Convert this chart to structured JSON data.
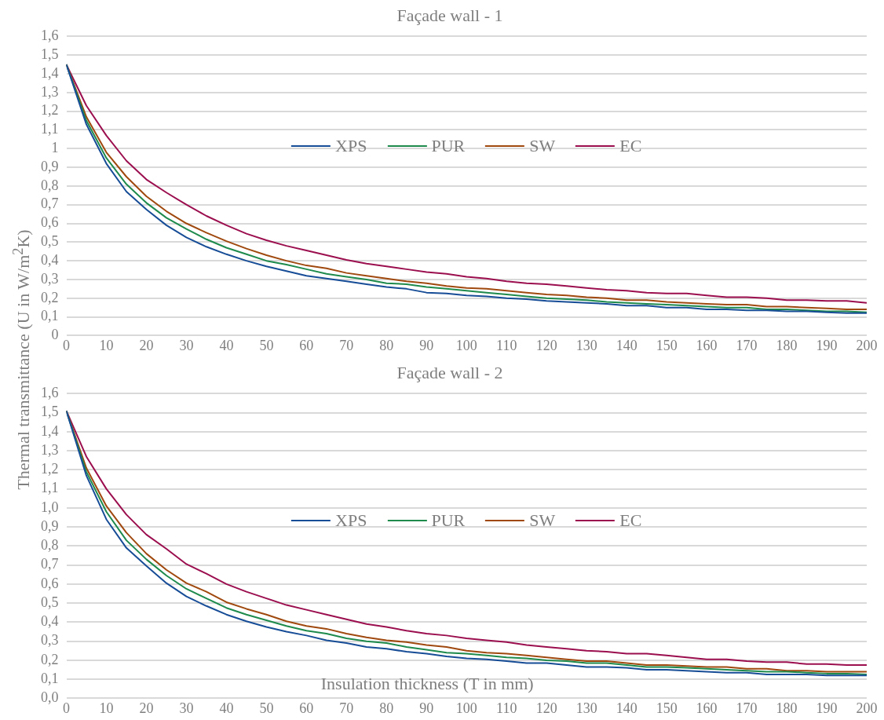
{
  "chart_data": [
    {
      "type": "line",
      "title": "Façade wall - 1",
      "ylabel": "Thermal transmittance (U in W/m$^{2}$K)",
      "legend": "center",
      "grid": "y",
      "marker": "none",
      "x": [
        0,
        5,
        10,
        15,
        20,
        25,
        30,
        35,
        40,
        45,
        50,
        55,
        60,
        65,
        70,
        75,
        80,
        85,
        90,
        95,
        100,
        105,
        110,
        115,
        120,
        125,
        130,
        135,
        140,
        145,
        150,
        155,
        160,
        165,
        170,
        175,
        180,
        185,
        190,
        195,
        200
      ],
      "xlim": [
        0,
        200
      ],
      "xticks": [
        0,
        10,
        20,
        30,
        40,
        50,
        60,
        70,
        80,
        90,
        100,
        110,
        120,
        130,
        140,
        150,
        160,
        170,
        180,
        190,
        200
      ],
      "ylim": [
        0,
        1.6
      ],
      "yticks": [
        {
          "value": 0,
          "label": "0"
        },
        {
          "value": 0.1,
          "label": "0,1"
        },
        {
          "value": 0.2,
          "label": "0,2"
        },
        {
          "value": 0.3,
          "label": "0,3"
        },
        {
          "value": 0.4,
          "label": "0,4"
        },
        {
          "value": 0.5,
          "label": "0,5"
        },
        {
          "value": 0.6,
          "label": "0,6"
        },
        {
          "value": 0.7,
          "label": "0,7"
        },
        {
          "value": 0.8,
          "label": "0,8"
        },
        {
          "value": 0.9,
          "label": "0,9"
        },
        {
          "value": 1,
          "label": "1"
        },
        {
          "value": 1.1,
          "label": "1,1"
        },
        {
          "value": 1.2,
          "label": "1,2"
        },
        {
          "value": 1.3,
          "label": "1,3"
        },
        {
          "value": 1.4,
          "label": "1,4"
        },
        {
          "value": 1.5,
          "label": "1,5"
        },
        {
          "value": 1.6,
          "label": "1,6"
        }
      ],
      "series": [
        {
          "name": "XPS",
          "color": "#174d96",
          "values": [
            1.45,
            1.13,
            0.92,
            0.77,
            0.675,
            0.59,
            0.525,
            0.475,
            0.435,
            0.4,
            0.37,
            0.345,
            0.32,
            0.305,
            0.29,
            0.275,
            0.26,
            0.25,
            0.23,
            0.225,
            0.215,
            0.21,
            0.2,
            0.195,
            0.185,
            0.18,
            0.175,
            0.17,
            0.16,
            0.16,
            0.15,
            0.15,
            0.14,
            0.14,
            0.135,
            0.135,
            0.13,
            0.13,
            0.125,
            0.12,
            0.12
          ]
        },
        {
          "name": "PUR",
          "color": "#1e8a4c",
          "values": [
            1.45,
            1.15,
            0.95,
            0.81,
            0.71,
            0.63,
            0.57,
            0.515,
            0.47,
            0.435,
            0.4,
            0.38,
            0.355,
            0.33,
            0.315,
            0.3,
            0.28,
            0.275,
            0.26,
            0.25,
            0.24,
            0.23,
            0.22,
            0.21,
            0.2,
            0.195,
            0.19,
            0.18,
            0.175,
            0.17,
            0.165,
            0.16,
            0.155,
            0.15,
            0.15,
            0.14,
            0.14,
            0.135,
            0.13,
            0.13,
            0.125
          ]
        },
        {
          "name": "SW",
          "color": "#a0490f",
          "values": [
            1.45,
            1.17,
            0.98,
            0.85,
            0.745,
            0.665,
            0.6,
            0.55,
            0.505,
            0.465,
            0.43,
            0.4,
            0.375,
            0.36,
            0.335,
            0.32,
            0.305,
            0.29,
            0.28,
            0.265,
            0.255,
            0.25,
            0.24,
            0.23,
            0.22,
            0.215,
            0.205,
            0.2,
            0.19,
            0.19,
            0.18,
            0.175,
            0.17,
            0.165,
            0.165,
            0.155,
            0.155,
            0.15,
            0.145,
            0.14,
            0.14
          ]
        },
        {
          "name": "EC",
          "color": "#9b0f4f",
          "values": [
            1.45,
            1.23,
            1.07,
            0.935,
            0.835,
            0.765,
            0.7,
            0.64,
            0.59,
            0.545,
            0.51,
            0.48,
            0.455,
            0.43,
            0.405,
            0.385,
            0.37,
            0.355,
            0.34,
            0.33,
            0.315,
            0.305,
            0.29,
            0.28,
            0.275,
            0.265,
            0.255,
            0.245,
            0.24,
            0.23,
            0.225,
            0.225,
            0.215,
            0.205,
            0.205,
            0.2,
            0.19,
            0.19,
            0.185,
            0.185,
            0.175
          ]
        }
      ]
    },
    {
      "type": "line",
      "title": "Façade wall - 2",
      "xlabel": "Insulation thickness (T in mm)",
      "legend": "center",
      "grid": "y",
      "marker": "none",
      "x": [
        0,
        5,
        10,
        15,
        20,
        25,
        30,
        35,
        40,
        45,
        50,
        55,
        60,
        65,
        70,
        75,
        80,
        85,
        90,
        95,
        100,
        105,
        110,
        115,
        120,
        125,
        130,
        135,
        140,
        145,
        150,
        155,
        160,
        165,
        170,
        175,
        180,
        185,
        190,
        195,
        200
      ],
      "xlim": [
        0,
        200
      ],
      "xticks": [
        0,
        10,
        20,
        30,
        40,
        50,
        60,
        70,
        80,
        90,
        100,
        110,
        120,
        130,
        140,
        150,
        160,
        170,
        180,
        190,
        200
      ],
      "ylim": [
        0,
        1.6
      ],
      "yticks": [
        {
          "value": 0,
          "label": "0,0"
        },
        {
          "value": 0.1,
          "label": "0,1"
        },
        {
          "value": 0.2,
          "label": "0,2"
        },
        {
          "value": 0.3,
          "label": "0,3"
        },
        {
          "value": 0.4,
          "label": "0,4"
        },
        {
          "value": 0.5,
          "label": "0,5"
        },
        {
          "value": 0.6,
          "label": "0,6"
        },
        {
          "value": 0.7,
          "label": "0,7"
        },
        {
          "value": 0.8,
          "label": "0,8"
        },
        {
          "value": 0.9,
          "label": "0,9"
        },
        {
          "value": 1,
          "label": "1,0"
        },
        {
          "value": 1.1,
          "label": "1,1"
        },
        {
          "value": 1.2,
          "label": "1,2"
        },
        {
          "value": 1.3,
          "label": "1,3"
        },
        {
          "value": 1.4,
          "label": "1,4"
        },
        {
          "value": 1.5,
          "label": "1,5"
        },
        {
          "value": 1.6,
          "label": "1,6"
        }
      ],
      "series": [
        {
          "name": "XPS",
          "color": "#174d96",
          "values": [
            1.51,
            1.17,
            0.94,
            0.79,
            0.695,
            0.605,
            0.535,
            0.485,
            0.44,
            0.405,
            0.375,
            0.35,
            0.33,
            0.305,
            0.29,
            0.27,
            0.26,
            0.245,
            0.235,
            0.22,
            0.21,
            0.205,
            0.195,
            0.185,
            0.185,
            0.175,
            0.165,
            0.165,
            0.16,
            0.15,
            0.15,
            0.145,
            0.14,
            0.135,
            0.135,
            0.125,
            0.125,
            0.125,
            0.12,
            0.12,
            0.12
          ]
        },
        {
          "name": "PUR",
          "color": "#1e8a4c",
          "values": [
            1.51,
            1.19,
            0.98,
            0.83,
            0.73,
            0.645,
            0.575,
            0.525,
            0.475,
            0.44,
            0.41,
            0.38,
            0.355,
            0.34,
            0.315,
            0.3,
            0.29,
            0.27,
            0.255,
            0.24,
            0.235,
            0.225,
            0.215,
            0.21,
            0.2,
            0.195,
            0.185,
            0.185,
            0.175,
            0.165,
            0.165,
            0.16,
            0.155,
            0.15,
            0.145,
            0.14,
            0.14,
            0.135,
            0.13,
            0.13,
            0.125
          ]
        },
        {
          "name": "SW",
          "color": "#a0490f",
          "values": [
            1.51,
            1.21,
            1.01,
            0.87,
            0.76,
            0.675,
            0.605,
            0.56,
            0.505,
            0.47,
            0.44,
            0.405,
            0.38,
            0.365,
            0.34,
            0.32,
            0.305,
            0.295,
            0.28,
            0.27,
            0.25,
            0.24,
            0.235,
            0.225,
            0.215,
            0.205,
            0.195,
            0.195,
            0.185,
            0.175,
            0.175,
            0.17,
            0.165,
            0.165,
            0.155,
            0.155,
            0.145,
            0.145,
            0.14,
            0.14,
            0.14
          ]
        },
        {
          "name": "EC",
          "color": "#9b0f4f",
          "values": [
            1.51,
            1.27,
            1.1,
            0.965,
            0.86,
            0.785,
            0.705,
            0.655,
            0.6,
            0.56,
            0.525,
            0.49,
            0.465,
            0.44,
            0.415,
            0.39,
            0.375,
            0.355,
            0.34,
            0.33,
            0.315,
            0.305,
            0.295,
            0.28,
            0.27,
            0.26,
            0.25,
            0.245,
            0.235,
            0.235,
            0.225,
            0.215,
            0.205,
            0.205,
            0.195,
            0.19,
            0.19,
            0.18,
            0.18,
            0.175,
            0.175
          ]
        }
      ]
    }
  ]
}
